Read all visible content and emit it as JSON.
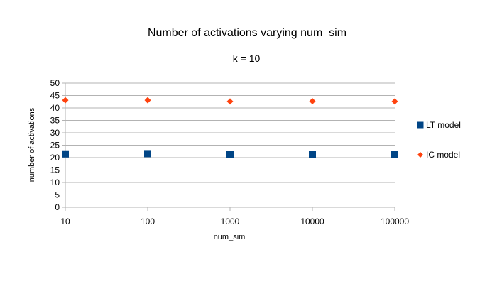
{
  "chart_data": {
    "type": "scatter",
    "title": "Number of activations varying num_sim",
    "subtitle": "k = 10",
    "xlabel": "num_sim",
    "ylabel": "number of activations",
    "x_scale": "log",
    "x": [
      10,
      100,
      1000,
      10000,
      100000
    ],
    "x_tick_labels": [
      "10",
      "100",
      "1000",
      "10000",
      "100000"
    ],
    "ylim": [
      0,
      50
    ],
    "y_ticks": [
      0,
      5,
      10,
      15,
      20,
      25,
      30,
      35,
      40,
      45,
      50
    ],
    "grid": true,
    "legend_position": "right",
    "series": [
      {
        "name": "LT model",
        "marker": "square",
        "color": "#004586",
        "values": [
          21.5,
          21.6,
          21.4,
          21.3,
          21.4
        ]
      },
      {
        "name": "IC model",
        "marker": "diamond",
        "color": "#ff420e",
        "values": [
          43.1,
          43.1,
          42.6,
          42.7,
          42.6
        ]
      }
    ]
  }
}
